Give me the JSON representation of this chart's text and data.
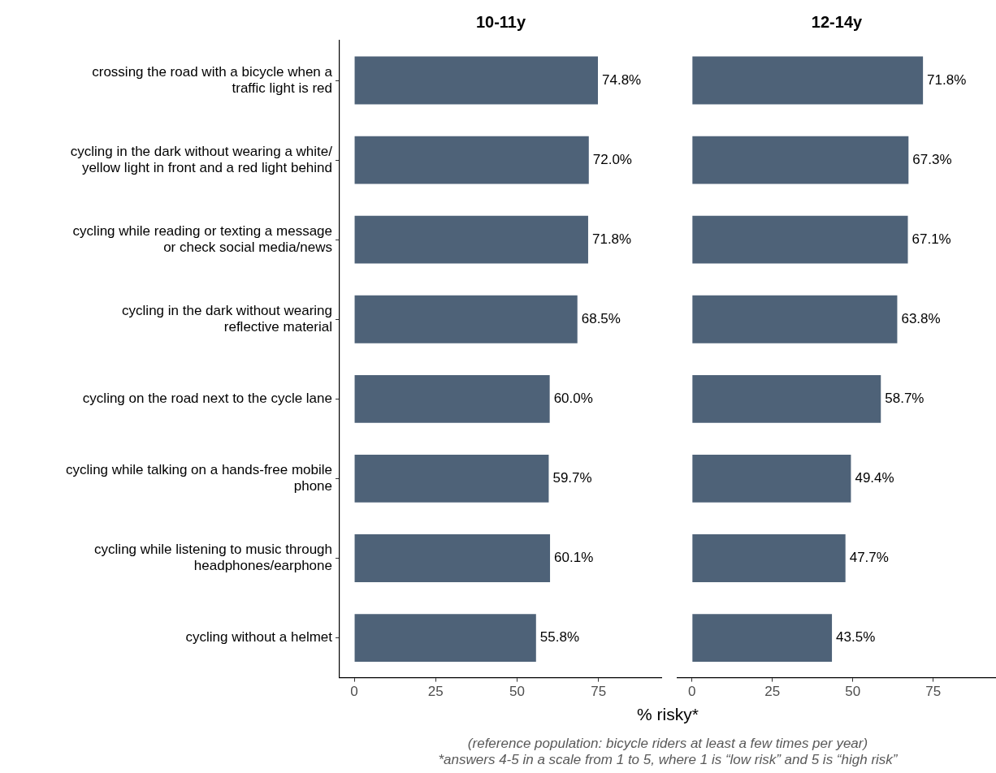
{
  "chart_data": [
    {
      "type": "bar",
      "orientation": "horizontal",
      "title": "10-11y",
      "xlabel": "% risky*",
      "categories": [
        "crossing the road with a bicycle when a\ntraffic light is red",
        "cycling in the dark without wearing a white/\nyellow light in front and a red light behind",
        "cycling while reading or texting a message\nor check social media/news",
        "cycling in the dark without wearing\nreflective material",
        "cycling on the road next to the cycle lane",
        "cycling while talking on a hands-free mobile\nphone",
        "cycling while listening to music through\nheadphones/earphone",
        "cycling without a helmet"
      ],
      "values": [
        74.8,
        72.0,
        71.8,
        68.5,
        60.0,
        59.7,
        60.1,
        55.8
      ],
      "color": "#4e6278",
      "value_labels": [
        "74.8%",
        "72.0%",
        "71.8%",
        "68.5%",
        "60.0%",
        "59.7%",
        "60.1%",
        "55.8%"
      ],
      "xlim": [
        -4.5,
        94.5
      ],
      "xticks": [
        0,
        25,
        50,
        75
      ],
      "grid": false,
      "annotations": [
        "(reference population: bicycle riders at least a few times per year)",
        "*answers 4-5 in a scale from 1 to 5, where 1 is “low risk” and 5 is “high risk”"
      ]
    },
    {
      "type": "bar",
      "orientation": "horizontal",
      "title": "12-14y",
      "categories": [
        null,
        null,
        null,
        null,
        null,
        null,
        null,
        null
      ],
      "values": [
        71.8,
        67.3,
        67.1,
        63.8,
        58.7,
        49.4,
        47.7,
        43.5
      ],
      "color": "#4e6278",
      "value_labels": [
        "71.8%",
        "67.3%",
        "67.1%",
        "63.8%",
        "58.7%",
        "49.4%",
        "47.7%",
        "43.5%"
      ],
      "xlim": [
        -4.5,
        94.5
      ],
      "xticks": [
        0,
        25,
        50,
        75
      ],
      "grid": false,
      "tick_labels": "x"
    }
  ]
}
